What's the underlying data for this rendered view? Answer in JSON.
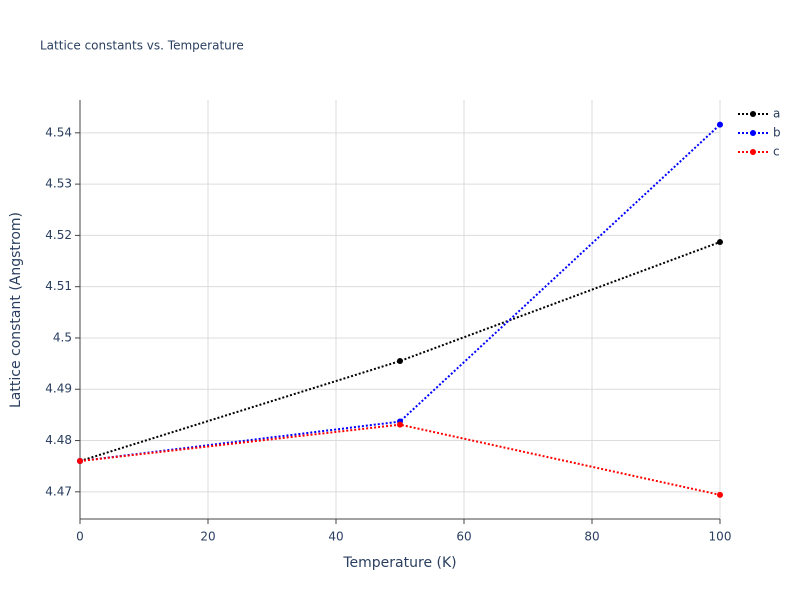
{
  "chart_data": {
    "type": "line",
    "title": "Lattice constants vs. Temperature",
    "x_label": "Temperature (K)",
    "y_label": "Lattice constant (Angstrom)",
    "x": [
      0,
      50,
      100
    ],
    "series": [
      {
        "name": "a",
        "color": "#000000",
        "values": [
          4.476,
          4.4955,
          4.5187
        ]
      },
      {
        "name": "b",
        "color": "#0000ff",
        "values": [
          4.476,
          4.4837,
          4.5416
        ]
      },
      {
        "name": "c",
        "color": "#ff0000",
        "values": [
          4.476,
          4.4831,
          4.4694
        ]
      }
    ],
    "xlim": [
      0,
      100
    ],
    "xticks": [
      0,
      20,
      40,
      60,
      80,
      100
    ],
    "ylim": [
      4.4647,
      4.5464
    ],
    "yticks": [
      4.47,
      4.48,
      4.49,
      4.5,
      4.51,
      4.52,
      4.53,
      4.54
    ],
    "grid": true,
    "legend": "right"
  }
}
